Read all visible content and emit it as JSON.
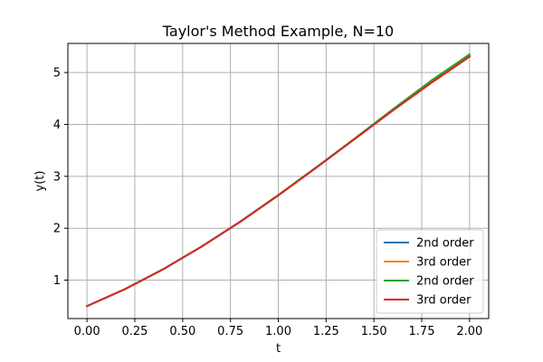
{
  "chart_data": {
    "type": "line",
    "title": "Taylor's Method Example, N=10",
    "xlabel": "t",
    "ylabel": "y(t)",
    "xlim": [
      -0.1,
      2.1
    ],
    "ylim": [
      0.26,
      5.56
    ],
    "xticks": [
      0.0,
      0.25,
      0.5,
      0.75,
      1.0,
      1.25,
      1.5,
      1.75,
      2.0
    ],
    "xtick_labels": [
      "0.00",
      "0.25",
      "0.50",
      "0.75",
      "1.00",
      "1.25",
      "1.50",
      "1.75",
      "2.00"
    ],
    "yticks": [
      1,
      2,
      3,
      4,
      5
    ],
    "ytick_labels": [
      "1",
      "2",
      "3",
      "4",
      "5"
    ],
    "grid": true,
    "legend_position": "lower-right",
    "x": [
      0.0,
      0.2,
      0.4,
      0.6,
      0.8,
      1.0,
      1.2,
      1.4,
      1.6,
      1.8,
      2.0
    ],
    "series": [
      {
        "name": "2nd order",
        "color": "#1f77b4",
        "values": [
          0.5,
          0.83,
          1.214,
          1.649,
          2.125,
          2.637,
          3.174,
          3.726,
          4.279,
          4.818,
          5.323
        ]
      },
      {
        "name": "3rd order",
        "color": "#ff7f0e",
        "values": [
          0.5,
          0.829,
          1.212,
          1.647,
          2.122,
          2.633,
          3.171,
          3.721,
          4.273,
          4.805,
          5.303
        ]
      },
      {
        "name": "2nd order",
        "color": "#2ca02c",
        "values": [
          0.5,
          0.83,
          1.214,
          1.65,
          2.127,
          2.64,
          3.18,
          3.73,
          4.295,
          4.845,
          5.35
        ]
      },
      {
        "name": "3rd order",
        "color": "#d62728",
        "values": [
          0.5,
          0.829,
          1.212,
          1.647,
          2.121,
          2.632,
          3.17,
          3.72,
          4.271,
          4.8,
          5.305
        ]
      }
    ]
  }
}
